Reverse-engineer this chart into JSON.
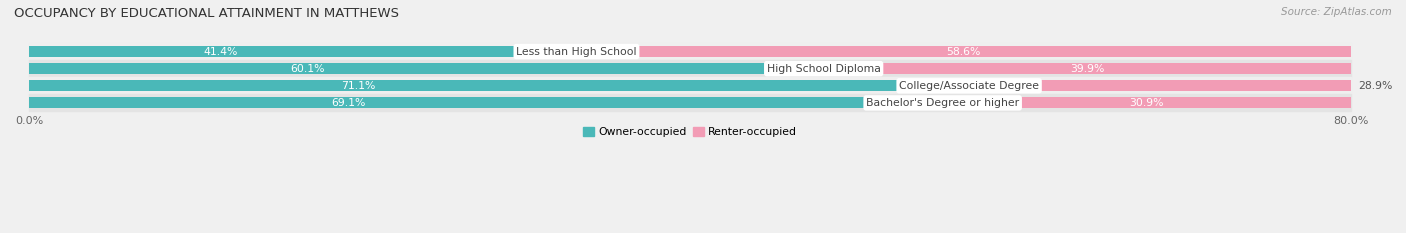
{
  "title": "OCCUPANCY BY EDUCATIONAL ATTAINMENT IN MATTHEWS",
  "source": "Source: ZipAtlas.com",
  "categories": [
    "Less than High School",
    "High School Diploma",
    "College/Associate Degree",
    "Bachelor's Degree or higher"
  ],
  "owner_values": [
    41.4,
    60.1,
    71.1,
    69.1
  ],
  "renter_values": [
    58.6,
    39.9,
    28.9,
    30.9
  ],
  "owner_color": "#4ab8b8",
  "renter_color": "#f29cb5",
  "row_bg_even": "#efefef",
  "row_bg_odd": "#e4e4e4",
  "x_min": 0.0,
  "x_max": 100.0,
  "x_left_label": "0.0%",
  "x_right_label": "80.0%",
  "title_fontsize": 9.5,
  "label_fontsize": 7.8,
  "tick_fontsize": 8,
  "source_fontsize": 7.5,
  "background_color": "#f0f0f0"
}
